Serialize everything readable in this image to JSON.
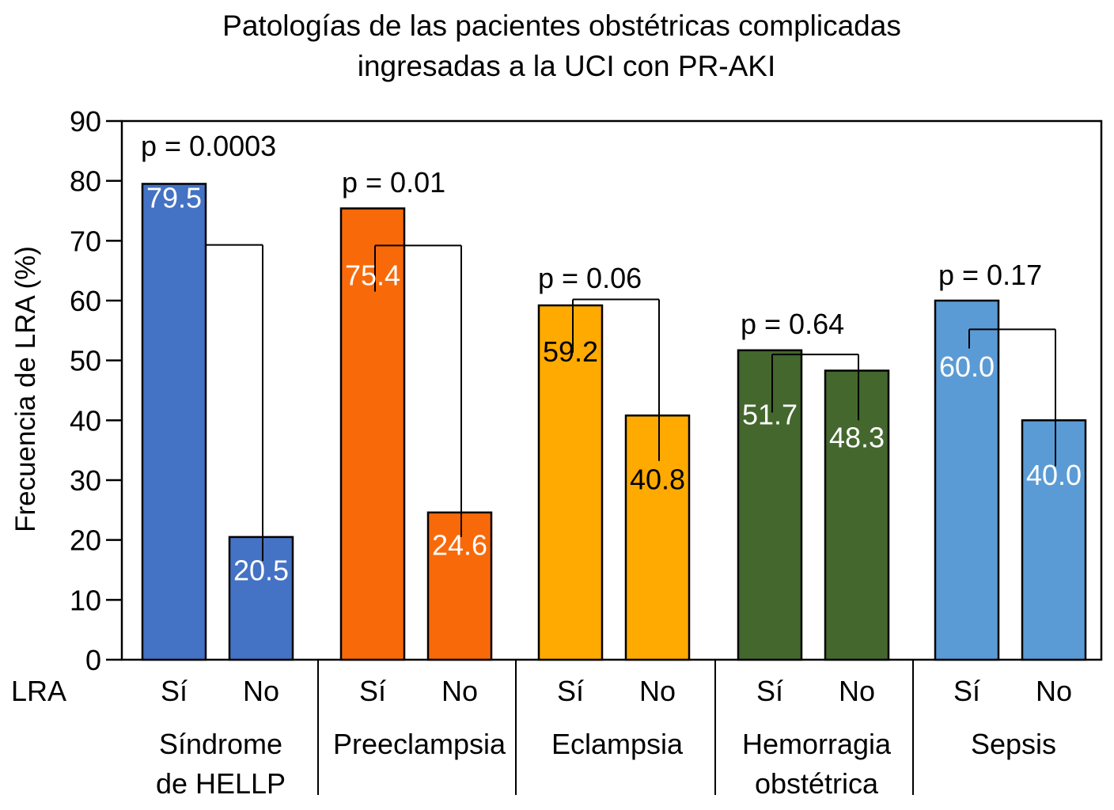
{
  "chart_data": {
    "type": "bar",
    "title": [
      "Patologías de las pacientes obstétricas complicadas",
      "ingresadas a la UCI con PR-AKI"
    ],
    "xlabel": "LRA",
    "ylabel": "Frecuencia de LRA (%)",
    "ylim": [
      0,
      90
    ],
    "yticks": [
      0,
      10,
      20,
      30,
      40,
      50,
      60,
      70,
      80,
      90
    ],
    "grid": false,
    "legend": "none",
    "subcategories": [
      "Sí",
      "No"
    ],
    "groups": [
      {
        "name": [
          "Síndrome",
          "de HELLP"
        ],
        "color": "#4472C4",
        "label_color": "#ffffff",
        "values": [
          79.5,
          20.5
        ],
        "value_labels": [
          "79.5",
          "20.5"
        ],
        "p_value": "p = 0.0003"
      },
      {
        "name": [
          "Preeclampsia"
        ],
        "color": "#F8690A",
        "label_color": "#ffffff",
        "values": [
          75.4,
          24.6
        ],
        "value_labels": [
          "75.4",
          "24.6"
        ],
        "p_value": "p = 0.01"
      },
      {
        "name": [
          "Eclampsia"
        ],
        "color": "#FFAA00",
        "label_color": "#000000",
        "values": [
          59.2,
          40.8
        ],
        "value_labels": [
          "59.2",
          "40.8"
        ],
        "p_value": "p = 0.06"
      },
      {
        "name": [
          "Hemorragia",
          "obstétrica"
        ],
        "color": "#43672D",
        "label_color": "#ffffff",
        "values": [
          51.7,
          48.3
        ],
        "value_labels": [
          "51.7",
          "48.3"
        ],
        "p_value": "p = 0.64"
      },
      {
        "name": [
          "Sepsis"
        ],
        "color": "#5B9BD5",
        "label_color": "#ffffff",
        "values": [
          60.0,
          40.0
        ],
        "value_labels": [
          "60.0",
          "40.0"
        ],
        "p_value": "p = 0.17"
      }
    ]
  }
}
